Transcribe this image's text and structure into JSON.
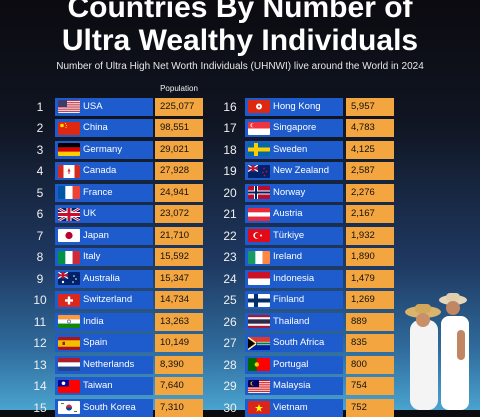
{
  "header": {
    "title_line1": "Countries By Number of",
    "title_line2": "Ultra Wealthy Individuals",
    "subtitle": "Number of Ultra High Net Worth Individuals (UHNWI) live around the World in 2024",
    "population_label": "Population"
  },
  "colors": {
    "name_box": "#1e5bcc",
    "value_box": "#f3a53f",
    "text_light": "#ffffff",
    "text_dark": "#111111"
  },
  "chart_data": {
    "type": "table",
    "title": "Countries By Number of Ultra Wealthy Individuals",
    "subtitle": "Number of Ultra High Net Worth Individuals (UHNWI) live around the World in 2024",
    "column_header": "Population",
    "rows": [
      {
        "rank": "1",
        "country": "USA",
        "value": "225,077",
        "flag": "us-flag-icon"
      },
      {
        "rank": "2",
        "country": "China",
        "value": "98,551",
        "flag": "china-flag-icon"
      },
      {
        "rank": "3",
        "country": "Germany",
        "value": "29,021",
        "flag": "germany-flag-icon"
      },
      {
        "rank": "4",
        "country": "Canada",
        "value": "27,928",
        "flag": "canada-flag-icon"
      },
      {
        "rank": "5",
        "country": "France",
        "value": "24,941",
        "flag": "france-flag-icon"
      },
      {
        "rank": "6",
        "country": "UK",
        "value": "23,072",
        "flag": "uk-flag-icon"
      },
      {
        "rank": "7",
        "country": "Japan",
        "value": "21,710",
        "flag": "japan-flag-icon"
      },
      {
        "rank": "8",
        "country": "Italy",
        "value": "15,592",
        "flag": "italy-flag-icon"
      },
      {
        "rank": "9",
        "country": "Australia",
        "value": "15,347",
        "flag": "australia-flag-icon"
      },
      {
        "rank": "10",
        "country": "Switzerland",
        "value": "14,734",
        "flag": "switzerland-flag-icon"
      },
      {
        "rank": "11",
        "country": "India",
        "value": "13,263",
        "flag": "india-flag-icon"
      },
      {
        "rank": "12",
        "country": "Spain",
        "value": "10,149",
        "flag": "spain-flag-icon"
      },
      {
        "rank": "13",
        "country": "Netherlands",
        "value": "8,390",
        "flag": "netherlands-flag-icon"
      },
      {
        "rank": "14",
        "country": "Taiwan",
        "value": "7,640",
        "flag": "taiwan-flag-icon"
      },
      {
        "rank": "15",
        "country": "South Korea",
        "value": "7,310",
        "flag": "south-korea-flag-icon"
      },
      {
        "rank": "16",
        "country": "Hong Kong",
        "value": "5,957",
        "flag": "hong-kong-flag-icon"
      },
      {
        "rank": "17",
        "country": "Singapore",
        "value": "4,783",
        "flag": "singapore-flag-icon"
      },
      {
        "rank": "18",
        "country": "Sweden",
        "value": "4,125",
        "flag": "sweden-flag-icon"
      },
      {
        "rank": "19",
        "country": "New Zealand",
        "value": "2,587",
        "flag": "new-zealand-flag-icon"
      },
      {
        "rank": "20",
        "country": "Norway",
        "value": "2,276",
        "flag": "norway-flag-icon"
      },
      {
        "rank": "21",
        "country": "Austria",
        "value": "2,167",
        "flag": "austria-flag-icon"
      },
      {
        "rank": "22",
        "country": "Türkiye",
        "value": "1,932",
        "flag": "turkiye-flag-icon"
      },
      {
        "rank": "23",
        "country": "Ireland",
        "value": "1,890",
        "flag": "ireland-flag-icon"
      },
      {
        "rank": "24",
        "country": "Indonesia",
        "value": "1,479",
        "flag": "indonesia-flag-icon"
      },
      {
        "rank": "25",
        "country": "Finland",
        "value": "1,269",
        "flag": "finland-flag-icon"
      },
      {
        "rank": "26",
        "country": "Thailand",
        "value": "889",
        "flag": "thailand-flag-icon"
      },
      {
        "rank": "27",
        "country": "South Africa",
        "value": "835",
        "flag": "south-africa-flag-icon"
      },
      {
        "rank": "28",
        "country": "Portugal",
        "value": "800",
        "flag": "portugal-flag-icon"
      },
      {
        "rank": "29",
        "country": "Malaysia",
        "value": "754",
        "flag": "malaysia-flag-icon"
      },
      {
        "rank": "30",
        "country": "Vietnam",
        "value": "752",
        "flag": "vietnam-flag-icon"
      }
    ]
  }
}
